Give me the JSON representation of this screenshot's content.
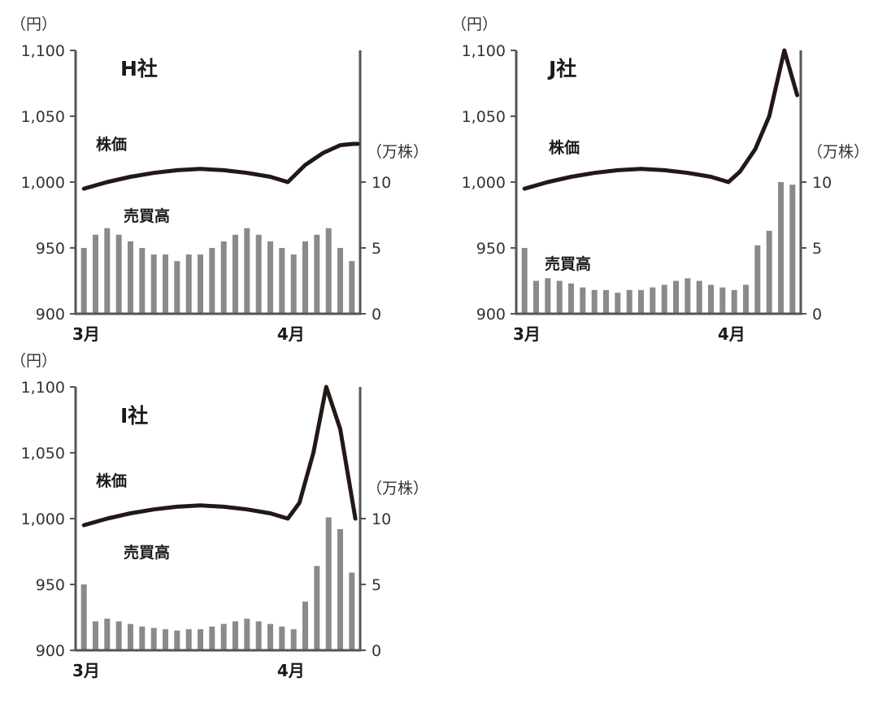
{
  "colors": {
    "axis": "#555555",
    "bar": "#8a8a8a",
    "line": "#231815",
    "text": "#333333"
  },
  "chart_data": [
    {
      "type": "bar+line",
      "title": "H社",
      "price_label": "株価",
      "volume_label": "売買高",
      "left_unit": "（円）",
      "right_unit": "（万株）",
      "ylim_left": [
        900,
        1100
      ],
      "ylim_right": [
        0,
        20
      ],
      "left_ticks": [
        "900",
        "950",
        "1,000",
        "1,050",
        "1,100"
      ],
      "left_tick_values": [
        900,
        950,
        1000,
        1050,
        1100
      ],
      "right_ticks": [
        "0",
        "5",
        "10"
      ],
      "right_tick_values": [
        0,
        5,
        10
      ],
      "x_labels": [
        {
          "text": "3月",
          "index": 0
        },
        {
          "text": "4月",
          "index": 17
        }
      ],
      "volume": [
        5,
        6,
        6.5,
        6,
        5.5,
        5,
        4.5,
        4.5,
        4,
        4.5,
        4.5,
        5,
        5.5,
        6,
        6.5,
        6,
        5.5,
        5,
        4.5,
        5.5,
        6,
        6.5,
        5,
        4
      ],
      "price": [
        {
          "x": 0,
          "y": 995
        },
        {
          "x": 2,
          "y": 1000
        },
        {
          "x": 4,
          "y": 1004
        },
        {
          "x": 6,
          "y": 1007
        },
        {
          "x": 8,
          "y": 1009
        },
        {
          "x": 10,
          "y": 1010
        },
        {
          "x": 12,
          "y": 1009
        },
        {
          "x": 14,
          "y": 1007
        },
        {
          "x": 16,
          "y": 1004
        },
        {
          "x": 17.5,
          "y": 1000
        },
        {
          "x": 19,
          "y": 1013
        },
        {
          "x": 20.5,
          "y": 1022
        },
        {
          "x": 22,
          "y": 1028
        },
        {
          "x": 23.1,
          "y": 1029
        },
        {
          "x": 23.5,
          "y": 1029
        }
      ]
    },
    {
      "type": "bar+line",
      "title": "J社",
      "price_label": "株価",
      "volume_label": "売買高",
      "left_unit": "（円）",
      "right_unit": "（万株）",
      "ylim_left": [
        900,
        1100
      ],
      "ylim_right": [
        0,
        20
      ],
      "left_ticks": [
        "900",
        "950",
        "1,000",
        "1,050",
        "1,100"
      ],
      "left_tick_values": [
        900,
        950,
        1000,
        1050,
        1100
      ],
      "right_ticks": [
        "0",
        "5",
        "10"
      ],
      "right_tick_values": [
        0,
        5,
        10
      ],
      "x_labels": [
        {
          "text": "3月",
          "index": 0
        },
        {
          "text": "4月",
          "index": 17
        }
      ],
      "volume": [
        5,
        2.5,
        2.7,
        2.5,
        2.3,
        2,
        1.8,
        1.8,
        1.6,
        1.8,
        1.8,
        2,
        2.2,
        2.5,
        2.7,
        2.5,
        2.2,
        2,
        1.8,
        2.2,
        5.2,
        6.3,
        10,
        9.8
      ],
      "price": [
        {
          "x": 0,
          "y": 995
        },
        {
          "x": 2,
          "y": 1000
        },
        {
          "x": 4,
          "y": 1004
        },
        {
          "x": 6,
          "y": 1007
        },
        {
          "x": 8,
          "y": 1009
        },
        {
          "x": 10,
          "y": 1010
        },
        {
          "x": 12,
          "y": 1009
        },
        {
          "x": 14,
          "y": 1007
        },
        {
          "x": 16,
          "y": 1004
        },
        {
          "x": 17.5,
          "y": 1000
        },
        {
          "x": 18.5,
          "y": 1008
        },
        {
          "x": 19.8,
          "y": 1025
        },
        {
          "x": 21,
          "y": 1050
        },
        {
          "x": 22.3,
          "y": 1100
        },
        {
          "x": 23.4,
          "y": 1066
        }
      ]
    },
    {
      "type": "bar+line",
      "title": "I社",
      "price_label": "株価",
      "volume_label": "売買高",
      "left_unit": "（円）",
      "right_unit": "（万株）",
      "ylim_left": [
        900,
        1100
      ],
      "ylim_right": [
        0,
        20
      ],
      "left_ticks": [
        "900",
        "950",
        "1,000",
        "1,050",
        "1,100"
      ],
      "left_tick_values": [
        900,
        950,
        1000,
        1050,
        1100
      ],
      "right_ticks": [
        "0",
        "5",
        "10"
      ],
      "right_tick_values": [
        0,
        5,
        10
      ],
      "x_labels": [
        {
          "text": "3月",
          "index": 0
        },
        {
          "text": "4月",
          "index": 17
        }
      ],
      "volume": [
        5,
        2.2,
        2.4,
        2.2,
        2,
        1.8,
        1.7,
        1.6,
        1.5,
        1.6,
        1.6,
        1.8,
        2,
        2.2,
        2.4,
        2.2,
        2,
        1.8,
        1.6,
        3.7,
        6.4,
        10.1,
        9.2,
        5.9
      ],
      "price": [
        {
          "x": 0,
          "y": 995
        },
        {
          "x": 2,
          "y": 1000
        },
        {
          "x": 4,
          "y": 1004
        },
        {
          "x": 6,
          "y": 1007
        },
        {
          "x": 8,
          "y": 1009
        },
        {
          "x": 10,
          "y": 1010
        },
        {
          "x": 12,
          "y": 1009
        },
        {
          "x": 14,
          "y": 1007
        },
        {
          "x": 16,
          "y": 1004
        },
        {
          "x": 17.5,
          "y": 1000
        },
        {
          "x": 18.5,
          "y": 1012
        },
        {
          "x": 19.7,
          "y": 1050
        },
        {
          "x": 20.8,
          "y": 1100
        },
        {
          "x": 22,
          "y": 1068
        },
        {
          "x": 23.3,
          "y": 1000
        }
      ]
    }
  ]
}
